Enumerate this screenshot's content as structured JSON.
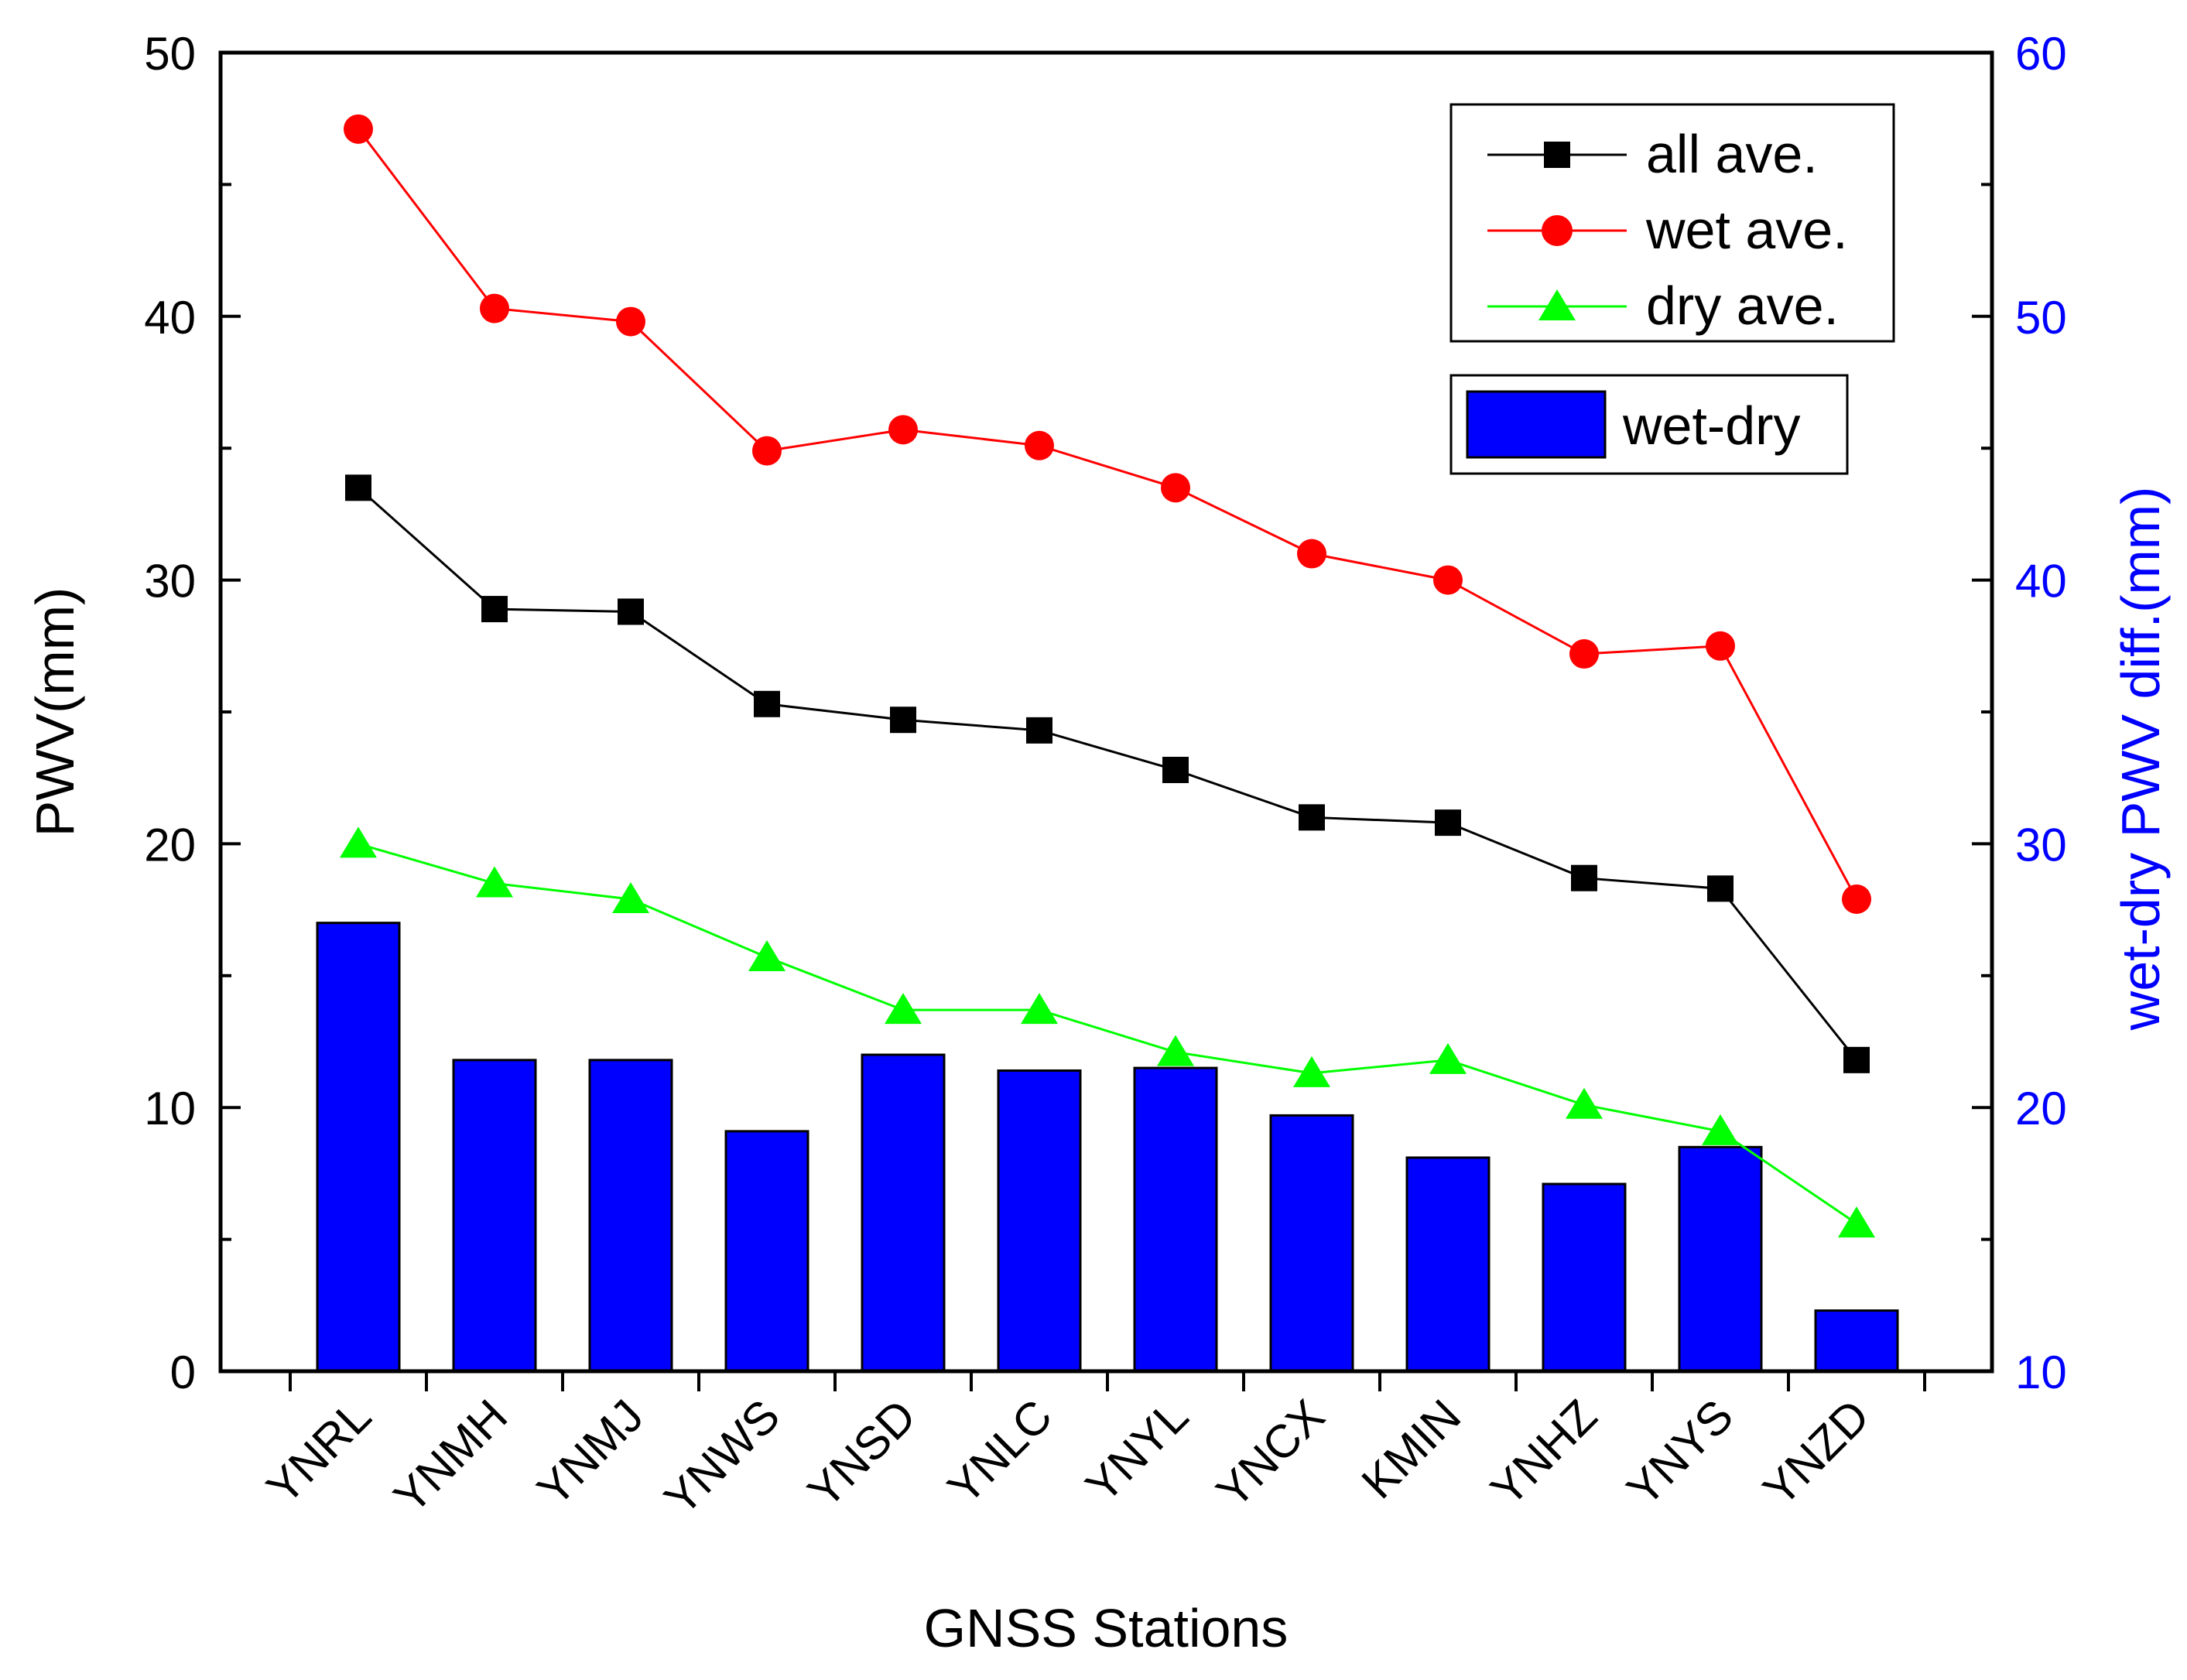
{
  "chart_data": {
    "type": "bar+line",
    "xlabel": "GNSS Stations",
    "ylabel_left": "PWV(mm)",
    "ylabel_right": "wet-dry PWV diff.(mm)",
    "ylim_left": [
      0,
      50
    ],
    "ylim_right": [
      10,
      60
    ],
    "yticks_left": [
      "0",
      "10",
      "20",
      "30",
      "40",
      "50"
    ],
    "yticks_right": [
      "10",
      "20",
      "30",
      "40",
      "50",
      "60"
    ],
    "grid": false,
    "legend_placement": "top-right",
    "categories": [
      "YNRL",
      "YNMH",
      "YNMJ",
      "YNWS",
      "YNSD",
      "YNLC",
      "YNYL",
      "YNCX",
      "KMIN",
      "YNHZ",
      "YNYS",
      "YNZD"
    ],
    "line_series": [
      {
        "name": "all ave.",
        "color": "#000000",
        "marker": "square",
        "axis": "left",
        "values": [
          33.5,
          28.9,
          28.8,
          25.3,
          24.7,
          24.3,
          22.8,
          21.0,
          20.8,
          18.7,
          18.3,
          11.8
        ]
      },
      {
        "name": "wet ave.",
        "color": "#ff0000",
        "marker": "circle",
        "axis": "left",
        "values": [
          47.1,
          40.3,
          39.8,
          34.9,
          35.7,
          35.1,
          33.5,
          31.0,
          30.0,
          27.2,
          27.5,
          17.9
        ]
      },
      {
        "name": "dry ave.",
        "color": "#00ff00",
        "marker": "triangle",
        "axis": "left",
        "values": [
          20.0,
          18.5,
          17.9,
          15.7,
          13.7,
          13.7,
          12.1,
          11.3,
          11.8,
          10.1,
          9.1,
          5.6
        ]
      }
    ],
    "bar_series": {
      "name": "wet-dry",
      "color": "#0000ff",
      "axis": "right",
      "values": [
        27.0,
        21.8,
        21.8,
        19.1,
        22.0,
        21.4,
        21.5,
        19.7,
        18.1,
        17.1,
        18.5,
        12.3
      ]
    }
  }
}
